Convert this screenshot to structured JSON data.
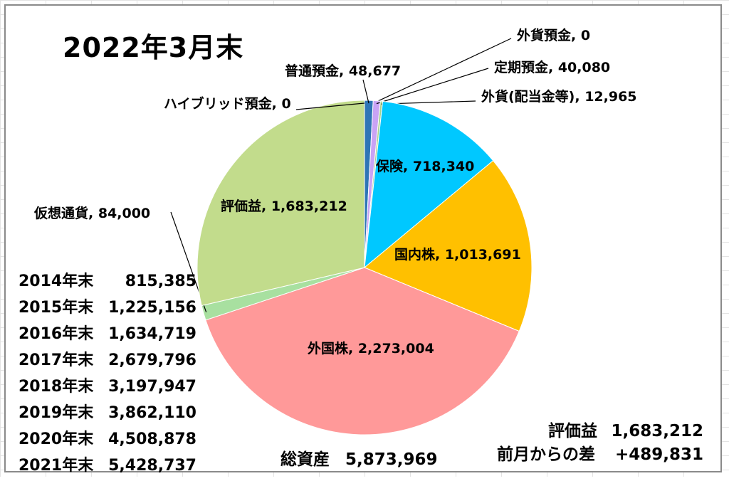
{
  "chart_data": {
    "type": "pie",
    "title": "2022年3月末",
    "slices": [
      {
        "label": "普通預金",
        "value": 48677,
        "display": "48,677",
        "color": "#2e75b6"
      },
      {
        "label": "外貨預金",
        "value": 0,
        "display": "0",
        "color": "#cc66ff"
      },
      {
        "label": "定期預金",
        "value": 40080,
        "display": "40,080",
        "color": "#c9a3f5"
      },
      {
        "label": "外貨(配当金等)",
        "value": 12965,
        "display": "12,965",
        "color": "#a9d18e"
      },
      {
        "label": "保険",
        "value": 718340,
        "display": "718,340",
        "color": "#00c8ff"
      },
      {
        "label": "国内株",
        "value": 1013691,
        "display": "1,013,691",
        "color": "#ffc000"
      },
      {
        "label": "外国株",
        "value": 2273004,
        "display": "2,273,004",
        "color": "#ff9999"
      },
      {
        "label": "仮想通貨",
        "value": 84000,
        "display": "84,000",
        "color": "#a8e0a0"
      },
      {
        "label": "評価益",
        "value": 1683212,
        "display": "1,683,212",
        "color": "#c2dc8c"
      },
      {
        "label": "ハイブリッド預金",
        "value": 0,
        "display": "0",
        "color": "#4472c4"
      }
    ]
  },
  "history": [
    {
      "year": "2014年末",
      "value": "815,385"
    },
    {
      "year": "2015年末",
      "value": "1,225,156"
    },
    {
      "year": "2016年末",
      "value": "1,634,719"
    },
    {
      "year": "2017年末",
      "value": "2,679,796"
    },
    {
      "year": "2018年末",
      "value": "3,197,947"
    },
    {
      "year": "2019年末",
      "value": "3,862,110"
    },
    {
      "year": "2020年末",
      "value": "4,508,878"
    },
    {
      "year": "2021年末",
      "value": "5,428,737"
    }
  ],
  "total": {
    "label": "総資産",
    "value": "5,873,969"
  },
  "summary": {
    "gain_label": "評価益",
    "gain_value": "1,683,212",
    "diff_label": "前月からの差",
    "diff_value": "+489,831"
  }
}
